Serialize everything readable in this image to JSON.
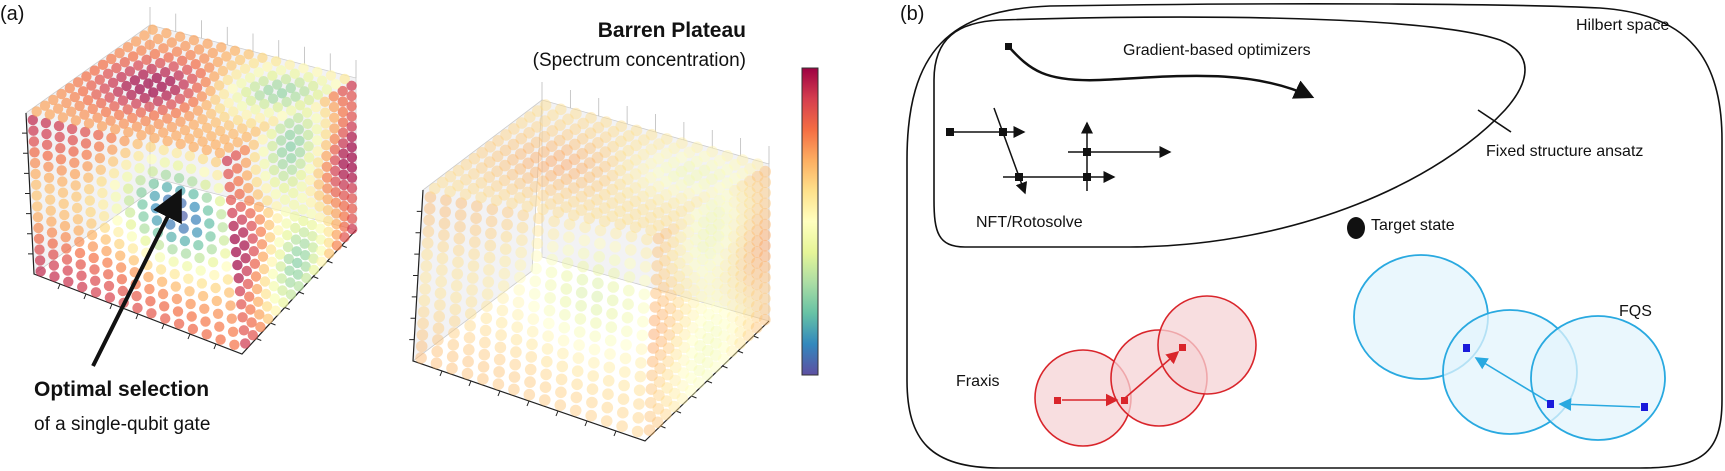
{
  "panel_a": {
    "label": "(a)",
    "title": "Barren Plateau",
    "subtitle": "(Spectrum concentration)",
    "annotation_bold": "Optimal selection",
    "annotation_text": "of a single-qubit gate",
    "colormap": [
      "#9e0142",
      "#d53e4f",
      "#f46d43",
      "#fdae61",
      "#fee08b",
      "#ffffbf",
      "#e6f598",
      "#abdda4",
      "#66c2a5",
      "#3288bd",
      "#5e4fa2"
    ]
  },
  "panel_b": {
    "label": "(b)",
    "hilbert_space": "Hilbert space",
    "gradient_optimizers": "Gradient-based optimizers",
    "fixed_ansatz": "Fixed structure ansatz",
    "nft_rotosolve": "NFT/Rotosolve",
    "target_state": "Target state",
    "fraxis": "Fraxis",
    "fqs": "FQS",
    "colors": {
      "fraxis": "#d9252b",
      "fraxis_fill": "#f6d3d5",
      "fqs": "#29a9e0",
      "fqs_fill": "#e3f4fc",
      "fqs_point": "#1a1adb"
    }
  }
}
